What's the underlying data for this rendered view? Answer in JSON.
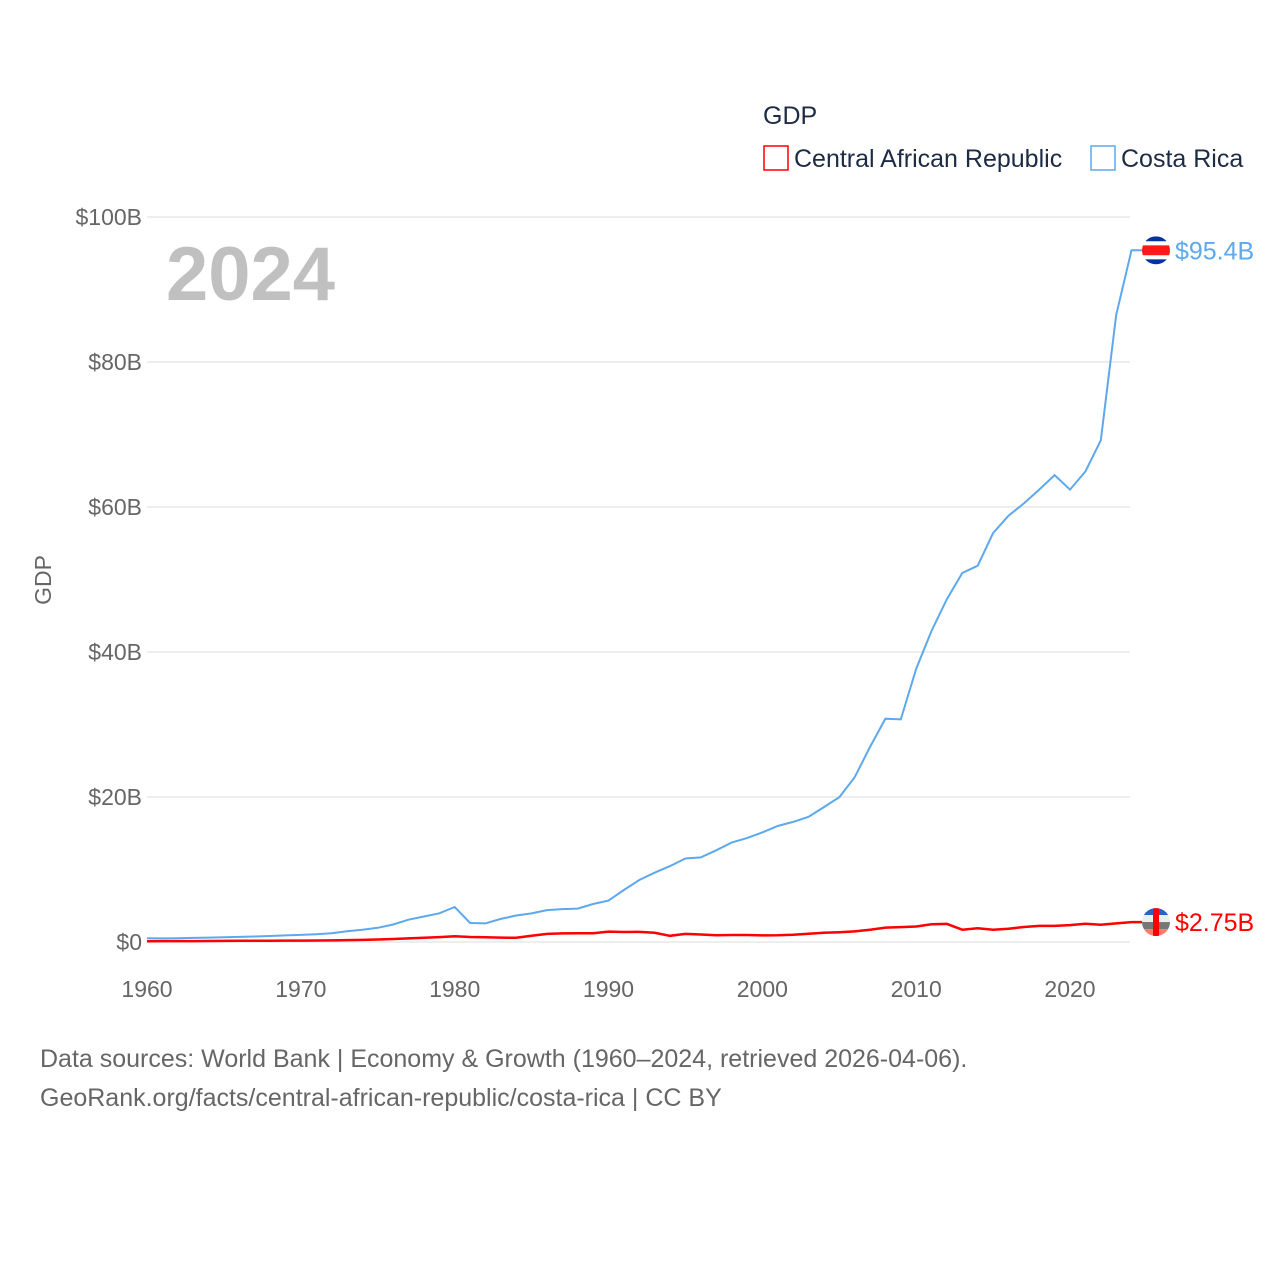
{
  "chart_data": {
    "type": "line",
    "legend_title": "GDP",
    "legend_position": "top-right",
    "ylabel": "GDP",
    "xlabel": "",
    "year_label": "2024",
    "xlim": [
      1960,
      2024
    ],
    "ylim": [
      0,
      100
    ],
    "y_unit": "billion US$",
    "grid": true,
    "x_ticks": [
      "1960",
      "1970",
      "1980",
      "1990",
      "2000",
      "2010",
      "2020"
    ],
    "x_tick_values": [
      1960,
      1970,
      1980,
      1990,
      2000,
      2010,
      2020
    ],
    "y_ticks": [
      "$0",
      "$20B",
      "$40B",
      "$60B",
      "$80B",
      "$100B"
    ],
    "y_tick_values": [
      0,
      20,
      40,
      60,
      80,
      100
    ],
    "x": [
      1960,
      1961,
      1962,
      1963,
      1964,
      1965,
      1966,
      1967,
      1968,
      1969,
      1970,
      1971,
      1972,
      1973,
      1974,
      1975,
      1976,
      1977,
      1978,
      1979,
      1980,
      1981,
      1982,
      1983,
      1984,
      1985,
      1986,
      1987,
      1988,
      1989,
      1990,
      1991,
      1992,
      1993,
      1994,
      1995,
      1996,
      1997,
      1998,
      1999,
      2000,
      2001,
      2002,
      2003,
      2004,
      2005,
      2006,
      2007,
      2008,
      2009,
      2010,
      2011,
      2012,
      2013,
      2014,
      2015,
      2016,
      2017,
      2018,
      2019,
      2020,
      2021,
      2022,
      2023,
      2024
    ],
    "series": [
      {
        "name": "Central African Republic",
        "color": "#ff0000",
        "end_label": "$2.75B",
        "values": [
          0.11,
          0.12,
          0.13,
          0.13,
          0.14,
          0.15,
          0.16,
          0.16,
          0.18,
          0.19,
          0.19,
          0.21,
          0.22,
          0.26,
          0.29,
          0.35,
          0.42,
          0.5,
          0.59,
          0.67,
          0.8,
          0.69,
          0.66,
          0.6,
          0.58,
          0.87,
          1.12,
          1.18,
          1.22,
          1.2,
          1.44,
          1.38,
          1.4,
          1.27,
          0.85,
          1.12,
          1.03,
          0.94,
          0.97,
          0.97,
          0.91,
          0.93,
          0.99,
          1.14,
          1.27,
          1.35,
          1.46,
          1.7,
          1.98,
          2.05,
          2.14,
          2.44,
          2.5,
          1.69,
          1.89,
          1.7,
          1.82,
          2.07,
          2.22,
          2.22,
          2.33,
          2.52,
          2.38,
          2.56,
          2.75
        ]
      },
      {
        "name": "Costa Rica",
        "color": "#5ea8ee",
        "end_label": "$95.4B",
        "values": [
          0.51,
          0.5,
          0.53,
          0.57,
          0.6,
          0.66,
          0.71,
          0.76,
          0.83,
          0.91,
          0.98,
          1.08,
          1.21,
          1.49,
          1.68,
          1.96,
          2.42,
          3.07,
          3.52,
          3.96,
          4.83,
          2.62,
          2.57,
          3.19,
          3.66,
          3.95,
          4.4,
          4.54,
          4.61,
          5.24,
          5.71,
          7.17,
          8.55,
          9.56,
          10.47,
          11.52,
          11.67,
          12.65,
          13.71,
          14.33,
          15.12,
          16.0,
          16.57,
          17.27,
          18.6,
          19.97,
          22.7,
          26.9,
          30.8,
          30.7,
          37.7,
          42.9,
          47.3,
          50.9,
          51.9,
          56.4,
          58.8,
          60.5,
          62.4,
          64.4,
          62.4,
          64.9,
          69.2,
          86.5,
          95.4
        ]
      }
    ]
  },
  "footer": {
    "line1": "Data sources: World Bank | Economy & Growth (1960–2024, retrieved 2026-04-06).",
    "line2": "GeoRank.org/facts/central-african-republic/costa-rica | CC BY"
  }
}
